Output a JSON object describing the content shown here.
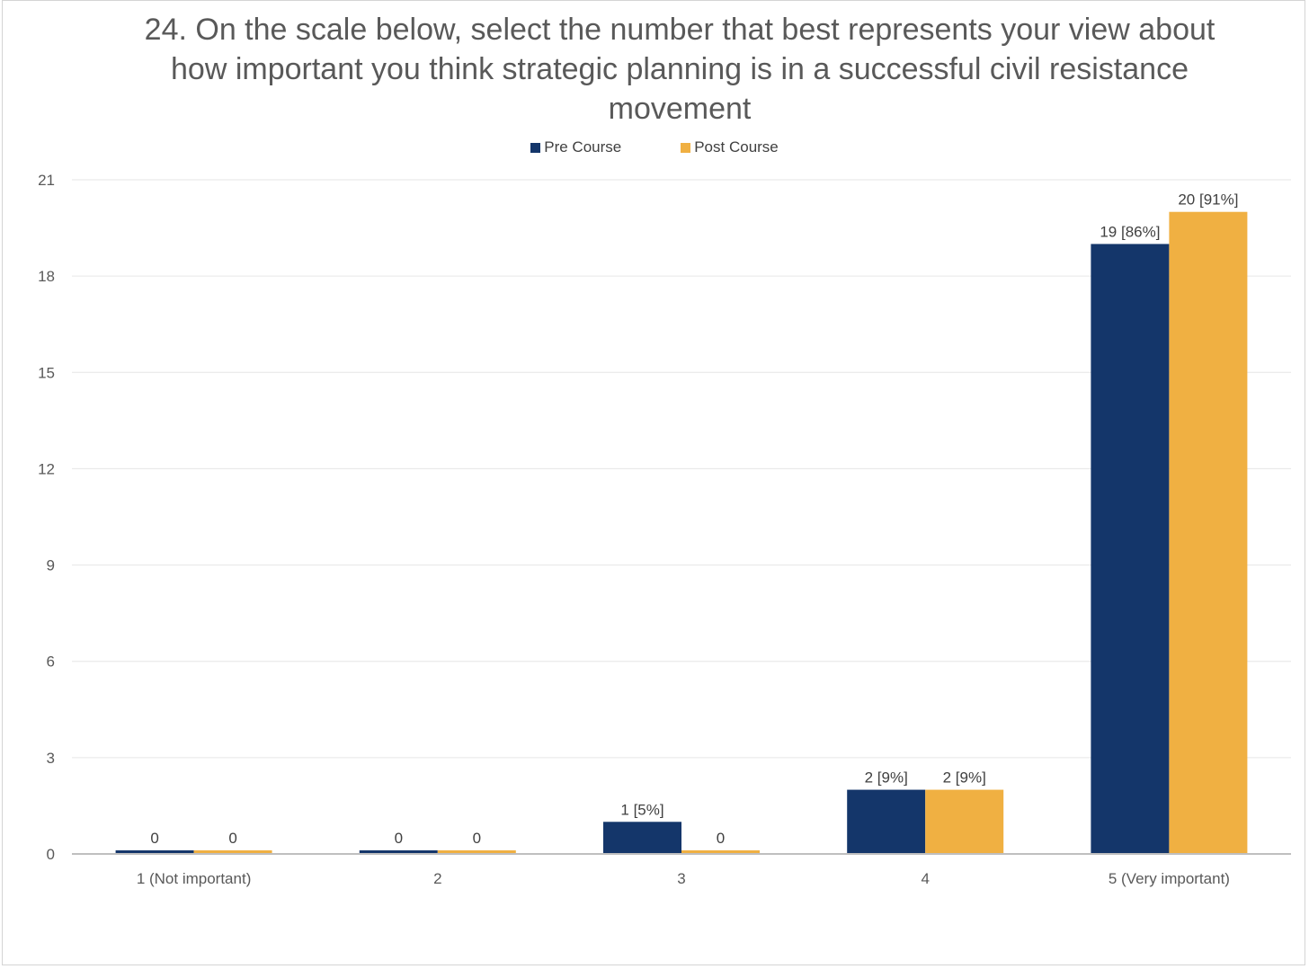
{
  "chart_data": {
    "type": "bar",
    "title": "24. On the scale below, select the number that best represents your view about how important you think strategic planning is in a successful civil resistance movement",
    "categories": [
      "1 (Not important)",
      "2",
      "3",
      "4",
      "5 (Very important)"
    ],
    "series": [
      {
        "name": "Pre Course",
        "color": "#14366a",
        "values": [
          0,
          0,
          1,
          2,
          19
        ],
        "labels": [
          "0",
          "0",
          "1 [5%]",
          "2 [9%]",
          "19 [86%]"
        ]
      },
      {
        "name": "Post Course",
        "color": "#f0b042",
        "values": [
          0,
          0,
          0,
          2,
          20
        ],
        "labels": [
          "0",
          "0",
          "0",
          "2 [9%]",
          "20 [91%]"
        ]
      }
    ],
    "ylim": [
      0,
      21
    ],
    "yticks": [
      0,
      3,
      6,
      9,
      12,
      15,
      18,
      21
    ],
    "grid": true,
    "legend_position": "top-center",
    "xlabel": "",
    "ylabel": ""
  }
}
